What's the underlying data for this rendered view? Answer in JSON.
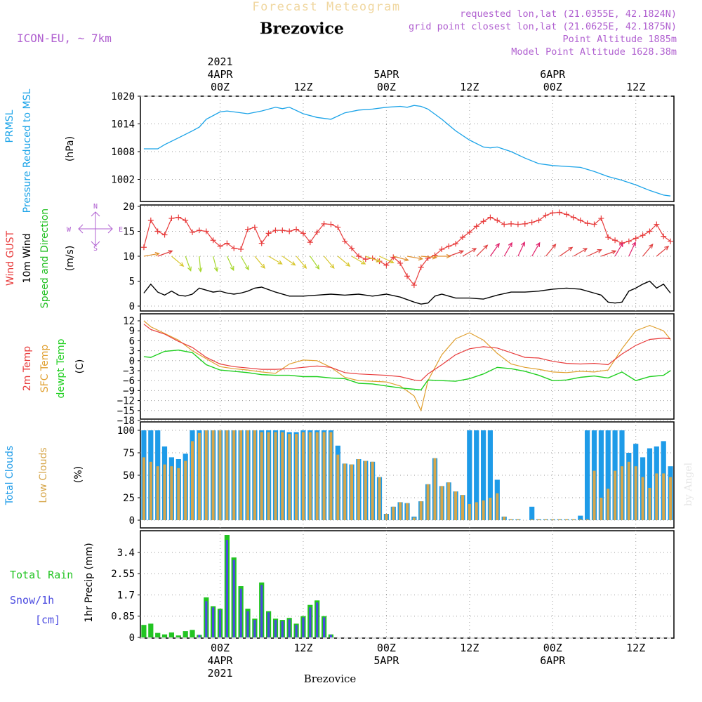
{
  "header": {
    "title": "Forecast Meteogram",
    "location": "Brezovice",
    "model": "ICON-EU, ~ 7km",
    "requested": "requested lon,lat (21.0355E, 42.1824N)",
    "gridpoint": "grid point closest lon,lat (21.0625E, 42.1875N)",
    "point_altitude": "Point Altitude 1885m",
    "model_altitude": "Model Point Altitude 1628.38m",
    "credit": "by Angel",
    "footer_location": "Brezovice"
  },
  "colors": {
    "pressure": "#1aa3e8",
    "gust": "#e83c3c",
    "wind": "#000000",
    "direction": "#1fbf1f",
    "temp": "#e83c3c",
    "sfc": "#e0a030",
    "dew": "#1fcf1f",
    "total_clouds": "#1e9be8",
    "low_clouds": "#d6a64a",
    "rain": "#22c422",
    "snow": "#4a4ae0",
    "compass": "#b060d0"
  },
  "time_axis": {
    "top_labels": [
      {
        "h": 0,
        "lines": [
          "2021",
          "4APR",
          "00Z"
        ]
      },
      {
        "h": 12,
        "lines": [
          "12Z"
        ]
      },
      {
        "h": 24,
        "lines": [
          "5APR",
          "00Z"
        ]
      },
      {
        "h": 36,
        "lines": [
          "12Z"
        ]
      },
      {
        "h": 48,
        "lines": [
          "6APR",
          "00Z"
        ]
      },
      {
        "h": 60,
        "lines": [
          "12Z"
        ]
      }
    ],
    "bottom_labels": [
      {
        "h": 0,
        "lines": [
          "00Z",
          "4APR",
          "2021"
        ]
      },
      {
        "h": 12,
        "lines": [
          "12Z"
        ]
      },
      {
        "h": 24,
        "lines": [
          "00Z",
          "5APR"
        ]
      },
      {
        "h": 36,
        "lines": [
          "12Z"
        ]
      },
      {
        "h": 48,
        "lines": [
          "00Z",
          "6APR"
        ]
      },
      {
        "h": 60,
        "lines": [
          "12Z"
        ]
      }
    ]
  },
  "panels": {
    "pressure": {
      "labels": [
        "PRMSL",
        "Pressure Reduced to MSL"
      ],
      "unit": "(hPa)",
      "ticks": [
        "1020",
        "1014",
        "1008",
        "1002"
      ]
    },
    "wind": {
      "labels": [
        "Wind GUST",
        "10m Wind",
        "Speed and Direction"
      ],
      "unit": "(m/s)",
      "ticks": [
        "20",
        "15",
        "10",
        "5",
        "0"
      ],
      "compass": {
        "n": "N",
        "s": "S",
        "e": "E",
        "w": "W"
      }
    },
    "temp": {
      "labels": [
        "2m Temp",
        "SFC Temp",
        "dewpt Temp"
      ],
      "unit": "(C)",
      "ticks": [
        "12",
        "9",
        "6",
        "3",
        "0",
        "−3",
        "−6",
        "−9",
        "−12",
        "−15",
        "−18"
      ]
    },
    "clouds": {
      "labels": [
        "Total Clouds",
        "Low Clouds"
      ],
      "unit": "(%)",
      "ticks": [
        "100",
        "75",
        "50",
        "25",
        "0"
      ]
    },
    "precip": {
      "labels": [
        "Total  Rain",
        "Snow/1h",
        "[cm]"
      ],
      "ylabel": "1hr Precip (mm)",
      "ticks": [
        "3.4",
        "2.55",
        "1.7",
        "0.85",
        "0"
      ]
    }
  },
  "chart_data": {
    "type": "line",
    "x_unit": "hours from 2021-04-04 00Z",
    "x_range": [
      -10,
      65
    ],
    "pressure_hpa": {
      "ylim": [
        997,
        1020
      ],
      "x": [
        -11,
        -10,
        -9,
        -8,
        -6,
        -4,
        -3,
        -2,
        0,
        1,
        2,
        4,
        6,
        8,
        9,
        10,
        12,
        14,
        16,
        18,
        20,
        22,
        24,
        26,
        27,
        28,
        29,
        30,
        32,
        34,
        36,
        38,
        39,
        40,
        42,
        44,
        46,
        48,
        50,
        52,
        54,
        56,
        58,
        60,
        62,
        64,
        65
      ],
      "values": [
        1008.6,
        1008.6,
        1008.6,
        1009.5,
        1011.0,
        1012.5,
        1013.3,
        1015.0,
        1016.6,
        1016.8,
        1016.6,
        1016.2,
        1016.8,
        1017.6,
        1017.3,
        1017.6,
        1016.2,
        1015.4,
        1015.0,
        1016.4,
        1017.0,
        1017.2,
        1017.6,
        1017.8,
        1017.6,
        1018.0,
        1017.8,
        1017.2,
        1015.0,
        1012.5,
        1010.5,
        1009.0,
        1008.8,
        1009.0,
        1008.0,
        1006.6,
        1005.4,
        1005.0,
        1004.8,
        1004.6,
        1003.7,
        1002.6,
        1001.8,
        1000.8,
        999.6,
        998.6,
        998.4
      ]
    },
    "gust_ms": {
      "ylim": [
        0,
        20
      ],
      "x": [
        -11,
        -10,
        -9,
        -8,
        -7,
        -6,
        -5,
        -4,
        -3,
        -2,
        -1,
        0,
        1,
        2,
        3,
        4,
        5,
        6,
        7,
        8,
        9,
        10,
        11,
        12,
        13,
        14,
        15,
        16,
        17,
        18,
        19,
        20,
        21,
        22,
        23,
        24,
        25,
        26,
        27,
        28,
        29,
        30,
        31,
        32,
        33,
        34,
        35,
        36,
        37,
        38,
        39,
        40,
        41,
        42,
        43,
        44,
        45,
        46,
        47,
        48,
        49,
        50,
        51,
        52,
        53,
        54,
        55,
        56,
        57,
        58,
        59,
        60,
        61,
        62,
        63,
        64,
        65
      ],
      "values": [
        11.8,
        17.2,
        15.0,
        14.3,
        17.6,
        17.8,
        17.2,
        14.8,
        15.2,
        15.0,
        13.2,
        12.0,
        12.6,
        11.6,
        11.4,
        15.4,
        15.8,
        12.6,
        14.6,
        15.2,
        15.2,
        15.0,
        15.4,
        14.6,
        12.8,
        14.8,
        16.5,
        16.4,
        15.8,
        13.0,
        11.6,
        10.0,
        9.4,
        9.6,
        9.0,
        8.2,
        9.8,
        8.6,
        6.0,
        4.2,
        7.8,
        9.6,
        10.2,
        11.4,
        12.0,
        12.5,
        13.8,
        14.8,
        16.0,
        17.0,
        17.8,
        17.2,
        16.4,
        16.5,
        16.4,
        16.5,
        16.8,
        17.2,
        18.2,
        18.7,
        18.8,
        18.4,
        17.8,
        17.2,
        16.6,
        16.4,
        17.6,
        13.8,
        13.2,
        12.6,
        13.0,
        13.6,
        14.2,
        15.0,
        16.4,
        14.0,
        13.0
      ]
    },
    "wind_ms": {
      "ylim": [
        0,
        20
      ],
      "x": [
        -11,
        -10,
        -9,
        -8,
        -7,
        -6,
        -5,
        -4,
        -3,
        -2,
        -1,
        0,
        1,
        2,
        3,
        4,
        5,
        6,
        8,
        10,
        12,
        14,
        16,
        18,
        20,
        22,
        24,
        26,
        28,
        29,
        30,
        31,
        32,
        34,
        36,
        38,
        40,
        42,
        44,
        46,
        48,
        50,
        52,
        54,
        55,
        56,
        57,
        58,
        59,
        60,
        61,
        62,
        63,
        64,
        65
      ],
      "values": [
        2.6,
        4.4,
        2.8,
        2.2,
        3.0,
        2.2,
        2.0,
        2.4,
        3.6,
        3.2,
        2.8,
        3.0,
        2.6,
        2.4,
        2.6,
        3.0,
        3.6,
        3.8,
        2.8,
        2.0,
        2.0,
        2.2,
        2.4,
        2.2,
        2.4,
        2.0,
        2.4,
        1.8,
        0.8,
        0.4,
        0.6,
        2.0,
        2.4,
        1.6,
        1.6,
        1.4,
        2.2,
        2.8,
        2.8,
        3.0,
        3.4,
        3.6,
        3.4,
        2.6,
        2.2,
        0.8,
        0.6,
        0.8,
        3.0,
        3.6,
        4.4,
        5.0,
        3.6,
        4.4,
        2.6
      ]
    },
    "direction_arrows": {
      "x": [
        -11,
        -9,
        -7,
        -5,
        -3,
        -1,
        1,
        3,
        5,
        7,
        9,
        11,
        13,
        15,
        17,
        19,
        21,
        23,
        25,
        27,
        29,
        31,
        33,
        35,
        37,
        39,
        41,
        43,
        45,
        47,
        49,
        51,
        53,
        55,
        57,
        59,
        61,
        63
      ],
      "to_deg": [
        80,
        70,
        130,
        160,
        175,
        165,
        155,
        150,
        140,
        120,
        125,
        140,
        145,
        140,
        130,
        120,
        110,
        115,
        105,
        100,
        95,
        90,
        70,
        60,
        45,
        35,
        30,
        25,
        30,
        40,
        55,
        60,
        65,
        70,
        30,
        25,
        40,
        50
      ]
    },
    "temp_c": {
      "ylim": [
        -18,
        12
      ],
      "x": [
        -11,
        -10,
        -8,
        -6,
        -4,
        -2,
        0,
        2,
        4,
        6,
        8,
        10,
        12,
        14,
        16,
        18,
        20,
        22,
        24,
        26,
        28,
        29,
        30,
        32,
        34,
        36,
        38,
        40,
        42,
        44,
        46,
        48,
        50,
        52,
        54,
        56,
        58,
        60,
        62,
        64,
        65
      ],
      "temp2m": [
        11.0,
        9.4,
        8.0,
        5.8,
        4.0,
        1.0,
        -1.0,
        -1.8,
        -2.2,
        -2.6,
        -2.6,
        -2.4,
        -2.0,
        -1.6,
        -2.0,
        -3.6,
        -4.0,
        -4.2,
        -4.4,
        -4.8,
        -5.8,
        -6.0,
        -4.0,
        -1.2,
        1.8,
        3.6,
        4.2,
        3.8,
        2.4,
        1.0,
        0.8,
        -0.2,
        -0.8,
        -1.0,
        -0.8,
        -1.2,
        2.0,
        4.6,
        6.4,
        6.8,
        6.6
      ],
      "sfc": [
        12.0,
        10.2,
        8.2,
        6.2,
        3.0,
        0.6,
        -1.8,
        -2.4,
        -2.8,
        -3.4,
        -3.8,
        -1.0,
        0.2,
        0.0,
        -2.0,
        -5.0,
        -6.0,
        -6.2,
        -6.4,
        -7.6,
        -10.6,
        -15.0,
        -6.0,
        1.8,
        6.6,
        8.4,
        6.2,
        2.2,
        -1.0,
        -2.0,
        -2.6,
        -3.4,
        -3.6,
        -3.2,
        -3.4,
        -2.8,
        3.6,
        9.0,
        10.6,
        9.0,
        6.4
      ],
      "dewpt": [
        1.2,
        1.0,
        2.8,
        3.2,
        2.4,
        -1.2,
        -2.8,
        -3.2,
        -3.6,
        -4.2,
        -4.4,
        -4.4,
        -4.8,
        -4.8,
        -5.2,
        -5.4,
        -6.8,
        -7.0,
        -7.6,
        -8.2,
        -8.6,
        -8.8,
        -5.8,
        -6.0,
        -6.2,
        -5.4,
        -4.0,
        -2.0,
        -2.4,
        -3.2,
        -4.4,
        -6.0,
        -5.8,
        -5.0,
        -4.6,
        -5.2,
        -3.4,
        -6.0,
        -4.8,
        -4.4,
        -3.0
      ]
    },
    "clouds_pct": {
      "ylim": [
        0,
        100
      ],
      "x": [
        -11,
        -10,
        -9,
        -8,
        -7,
        -6,
        -5,
        -4,
        -3,
        -2,
        -1,
        0,
        1,
        2,
        3,
        4,
        5,
        6,
        7,
        8,
        9,
        10,
        11,
        12,
        13,
        14,
        15,
        16,
        17,
        18,
        19,
        20,
        21,
        22,
        23,
        24,
        25,
        26,
        27,
        28,
        29,
        30,
        31,
        32,
        33,
        34,
        35,
        36,
        37,
        38,
        39,
        40,
        41,
        42,
        43,
        44,
        45,
        46,
        47,
        48,
        49,
        50,
        51,
        52,
        53,
        54,
        55,
        56,
        57,
        58,
        59,
        60,
        61,
        62,
        63,
        64,
        65
      ],
      "total": [
        100,
        100,
        100,
        82,
        70,
        68,
        74,
        100,
        100,
        100,
        100,
        100,
        100,
        100,
        100,
        100,
        100,
        100,
        100,
        100,
        100,
        98,
        98,
        100,
        100,
        100,
        100,
        100,
        83,
        63,
        62,
        68,
        66,
        65,
        48,
        7,
        15,
        20,
        19,
        4,
        21,
        40,
        69,
        38,
        42,
        32,
        28,
        100,
        100,
        100,
        100,
        45,
        4,
        1,
        1,
        0,
        15,
        1,
        1,
        1,
        1,
        1,
        1,
        5,
        100,
        100,
        100,
        100,
        100,
        100,
        75,
        85,
        70,
        80,
        82,
        88,
        60
      ],
      "low": [
        70,
        65,
        60,
        62,
        60,
        58,
        66,
        88,
        97,
        100,
        100,
        100,
        100,
        100,
        100,
        100,
        100,
        98,
        98,
        98,
        98,
        96,
        96,
        98,
        98,
        98,
        98,
        98,
        73,
        63,
        62,
        68,
        66,
        65,
        48,
        7,
        15,
        20,
        19,
        3,
        21,
        40,
        69,
        38,
        42,
        32,
        28,
        18,
        20,
        22,
        25,
        30,
        4,
        1,
        1,
        0,
        1,
        1,
        1,
        1,
        1,
        1,
        1,
        1,
        1,
        55,
        25,
        35,
        55,
        60,
        65,
        60,
        48,
        36,
        52,
        52,
        48
      ]
    },
    "precip_mm": {
      "ylim": [
        0,
        4.1
      ],
      "x": [
        -11,
        -10,
        -9,
        -8,
        -7,
        -6,
        -5,
        -4,
        -3,
        -2,
        -1,
        0,
        1,
        2,
        3,
        4,
        5,
        6,
        7,
        8,
        9,
        10,
        11,
        12,
        13,
        14,
        15,
        16
      ],
      "rain": [
        0.5,
        0.55,
        0.18,
        0.12,
        0.2,
        0.08,
        0.25,
        0.3,
        0.1,
        1.6,
        1.25,
        1.15,
        4.1,
        3.2,
        2.05,
        1.15,
        0.75,
        2.2,
        1.05,
        0.75,
        0.7,
        0.78,
        0.55,
        0.85,
        1.3,
        1.48,
        0.85,
        0.12
      ],
      "snow": [
        0,
        0,
        0,
        0,
        0,
        0,
        0,
        0,
        0.1,
        1.45,
        1.2,
        1.1,
        3.9,
        3.1,
        1.95,
        1.05,
        0.7,
        2.1,
        1.0,
        0.7,
        0.65,
        0.72,
        0.5,
        0.8,
        1.2,
        1.4,
        0.8,
        0.1
      ]
    }
  }
}
